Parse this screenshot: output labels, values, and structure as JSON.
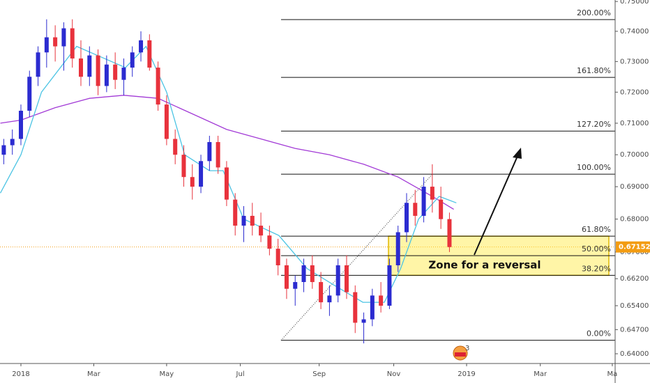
{
  "chart_data": {
    "type": "candlestick",
    "x": [
      -2,
      -1,
      0,
      1,
      2,
      3,
      4,
      5,
      6,
      7,
      8,
      9,
      10,
      11,
      12,
      13,
      14,
      15,
      16,
      17,
      18,
      19,
      20,
      21,
      22,
      23,
      24,
      25,
      26,
      27,
      28,
      29,
      30,
      31,
      32,
      33,
      34,
      35,
      36,
      37,
      38,
      39,
      40,
      41,
      42,
      43,
      44,
      45,
      46,
      47,
      48,
      49,
      50
    ],
    "open": [
      0.7,
      0.703,
      0.705,
      0.714,
      0.725,
      0.733,
      0.738,
      0.735,
      0.741,
      0.731,
      0.725,
      0.732,
      0.722,
      0.729,
      0.724,
      0.728,
      0.733,
      0.737,
      0.728,
      0.716,
      0.705,
      0.7,
      0.693,
      0.69,
      0.698,
      0.704,
      0.696,
      0.686,
      0.678,
      0.681,
      0.678,
      0.675,
      0.671,
      0.666,
      0.659,
      0.661,
      0.666,
      0.661,
      0.655,
      0.657,
      0.666,
      0.658,
      0.649,
      0.65,
      0.657,
      0.654,
      0.666,
      0.676,
      0.685,
      0.681,
      0.69,
      0.686,
      0.68
    ],
    "high": [
      0.705,
      0.708,
      0.716,
      0.727,
      0.735,
      0.744,
      0.742,
      0.743,
      0.744,
      0.737,
      0.735,
      0.734,
      0.732,
      0.733,
      0.731,
      0.735,
      0.74,
      0.739,
      0.73,
      0.719,
      0.708,
      0.703,
      0.697,
      0.7,
      0.706,
      0.706,
      0.698,
      0.688,
      0.684,
      0.685,
      0.682,
      0.678,
      0.674,
      0.668,
      0.663,
      0.668,
      0.669,
      0.664,
      0.66,
      0.668,
      0.669,
      0.66,
      0.652,
      0.659,
      0.661,
      0.668,
      0.678,
      0.688,
      0.689,
      0.693,
      0.697,
      0.69,
      0.682
    ],
    "low": [
      0.697,
      0.7,
      0.703,
      0.712,
      0.722,
      0.728,
      0.73,
      0.727,
      0.728,
      0.722,
      0.722,
      0.719,
      0.72,
      0.721,
      0.719,
      0.725,
      0.73,
      0.727,
      0.714,
      0.703,
      0.697,
      0.69,
      0.686,
      0.688,
      0.695,
      0.694,
      0.684,
      0.675,
      0.673,
      0.675,
      0.673,
      0.669,
      0.663,
      0.656,
      0.654,
      0.658,
      0.659,
      0.653,
      0.651,
      0.655,
      0.656,
      0.646,
      0.643,
      0.648,
      0.652,
      0.653,
      0.664,
      0.673,
      0.678,
      0.679,
      0.682,
      0.677,
      0.67
    ],
    "close": [
      0.703,
      0.705,
      0.714,
      0.725,
      0.733,
      0.738,
      0.735,
      0.741,
      0.731,
      0.725,
      0.732,
      0.722,
      0.729,
      0.724,
      0.728,
      0.733,
      0.737,
      0.728,
      0.716,
      0.705,
      0.7,
      0.693,
      0.69,
      0.698,
      0.704,
      0.696,
      0.686,
      0.678,
      0.681,
      0.678,
      0.675,
      0.671,
      0.666,
      0.659,
      0.661,
      0.666,
      0.661,
      0.655,
      0.657,
      0.666,
      0.658,
      0.649,
      0.65,
      0.657,
      0.654,
      0.666,
      0.676,
      0.685,
      0.681,
      0.69,
      0.686,
      0.68,
      0.6715
    ],
    "up_color": "#2b2bd0",
    "down_color": "#e8323c",
    "log_scale": true,
    "ylim": [
      0.6372,
      0.7505
    ],
    "xlim": [
      -2.44,
      69.33
    ],
    "yticks": [
      {
        "value": 0.75,
        "label": "0.75000"
      },
      {
        "value": 0.74,
        "label": "0.74000"
      },
      {
        "value": 0.73,
        "label": "0.73000"
      },
      {
        "value": 0.72,
        "label": "0.72000"
      },
      {
        "value": 0.71,
        "label": "0.71000"
      },
      {
        "value": 0.7,
        "label": "0.70000"
      },
      {
        "value": 0.69,
        "label": "0.69000"
      },
      {
        "value": 0.68,
        "label": "0.68000"
      },
      {
        "value": 0.67,
        "label": "0.67000"
      },
      {
        "value": 0.662,
        "label": "0.66200"
      },
      {
        "value": 0.654,
        "label": "0.65400"
      },
      {
        "value": 0.647,
        "label": "0.64700"
      },
      {
        "value": 0.64,
        "label": "0.64000"
      }
    ],
    "xticks": [
      {
        "value": 0,
        "label": "2018"
      },
      {
        "value": 8.5,
        "label": "Mar"
      },
      {
        "value": 17,
        "label": "May"
      },
      {
        "value": 25.6,
        "label": "Jul"
      },
      {
        "value": 34.8,
        "label": "Sep"
      },
      {
        "value": 43.5,
        "label": "Nov"
      },
      {
        "value": 52,
        "label": "2019"
      },
      {
        "value": 60.6,
        "label": "Mar"
      },
      {
        "value": 69,
        "label": "Ma"
      }
    ],
    "moving_averages": [
      {
        "color": "#a23ad6",
        "x": [
          -2.4,
          0,
          4,
          8,
          12,
          16,
          20,
          24,
          28,
          32,
          36,
          40,
          44,
          48,
          50.5
        ],
        "values": [
          0.71,
          0.711,
          0.715,
          0.718,
          0.719,
          0.718,
          0.713,
          0.708,
          0.705,
          0.702,
          0.7,
          0.697,
          0.693,
          0.687,
          0.683
        ]
      },
      {
        "color": "#4cc4e4",
        "x": [
          -2.4,
          0,
          2.4,
          6.5,
          12.2,
          14.6,
          17,
          19.1,
          22,
          23.6,
          26,
          30.1,
          33.4,
          36.6,
          39.9,
          42.4,
          44.3,
          46.4,
          48.8,
          50.8
        ],
        "values": [
          0.688,
          0.7,
          0.72,
          0.735,
          0.728,
          0.735,
          0.72,
          0.7,
          0.695,
          0.695,
          0.68,
          0.675,
          0.665,
          0.66,
          0.655,
          0.655,
          0.665,
          0.68,
          0.687,
          0.685
        ]
      }
    ],
    "fib": {
      "start_x": 30.35,
      "end_x": 48,
      "levels": [
        {
          "label": "0.00%",
          "price": 0.6439
        },
        {
          "label": "38.20%",
          "price": 0.663
        },
        {
          "label": "50.00%",
          "price": 0.6689
        },
        {
          "label": "61.80%",
          "price": 0.6748
        },
        {
          "label": "100.00%",
          "price": 0.6939
        },
        {
          "label": "127.20%",
          "price": 0.7075
        },
        {
          "label": "161.80%",
          "price": 0.7248
        },
        {
          "label": "200.00%",
          "price": 0.7439
        }
      ]
    },
    "last_price": 0.67152,
    "zone_text": "Zone for a reversal",
    "event_badge": "3"
  }
}
